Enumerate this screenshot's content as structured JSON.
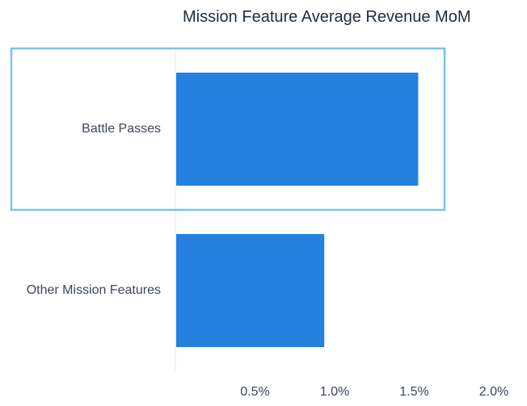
{
  "chart_data": {
    "type": "bar",
    "orientation": "horizontal",
    "title": "Mission Feature Average Revenue MoM",
    "xlabel": "",
    "ylabel": "",
    "categories": [
      "Battle Passes",
      "Other Mission Features"
    ],
    "values": [
      1.52,
      0.93
    ],
    "value_unit": "%",
    "xlim": [
      0,
      2.0
    ],
    "x_ticks": [
      "0.5%",
      "1.0%",
      "1.5%",
      "2.0%"
    ],
    "grid": false,
    "legend": "none",
    "highlighted_category": "Battle Passes",
    "colors": {
      "bar": "#2481e0",
      "highlight_border": "#7bc2f2",
      "axis_line": "#e6e8ec",
      "tick_text": "#3c4654",
      "category_text": "#3c4654",
      "title_text": "#1f2d3d"
    }
  }
}
